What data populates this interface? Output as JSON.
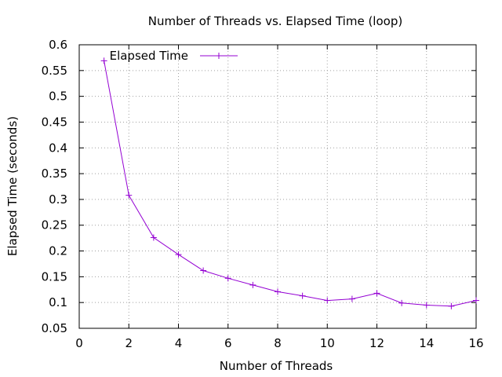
{
  "chart_data": {
    "type": "line",
    "title": "Number of Threads vs. Elapsed Time (loop)",
    "xlabel": "Number of Threads",
    "ylabel": "Elapsed Time (seconds)",
    "xlim": [
      0,
      16
    ],
    "ylim": [
      0.05,
      0.6
    ],
    "xticks": [
      0,
      2,
      4,
      6,
      8,
      10,
      12,
      14,
      16
    ],
    "yticks": [
      0.05,
      0.1,
      0.15,
      0.2,
      0.25,
      0.3,
      0.35,
      0.4,
      0.45,
      0.5,
      0.55,
      0.6
    ],
    "xtick_labels": [
      "0",
      "2",
      "4",
      "6",
      "8",
      "10",
      "12",
      "14",
      "16"
    ],
    "ytick_labels": [
      "0.05",
      "0.1",
      "0.15",
      "0.2",
      "0.25",
      "0.3",
      "0.35",
      "0.4",
      "0.45",
      "0.5",
      "0.55",
      "0.6"
    ],
    "grid": true,
    "legend_position": "top-left",
    "series": [
      {
        "name": "Elapsed Time",
        "color": "#9400d3",
        "marker": "plus",
        "x": [
          1,
          2,
          3,
          4,
          5,
          6,
          7,
          8,
          9,
          10,
          11,
          12,
          13,
          14,
          15,
          16
        ],
        "values": [
          0.569,
          0.308,
          0.226,
          0.193,
          0.162,
          0.147,
          0.134,
          0.121,
          0.113,
          0.104,
          0.107,
          0.118,
          0.099,
          0.095,
          0.093,
          0.104
        ]
      }
    ]
  }
}
